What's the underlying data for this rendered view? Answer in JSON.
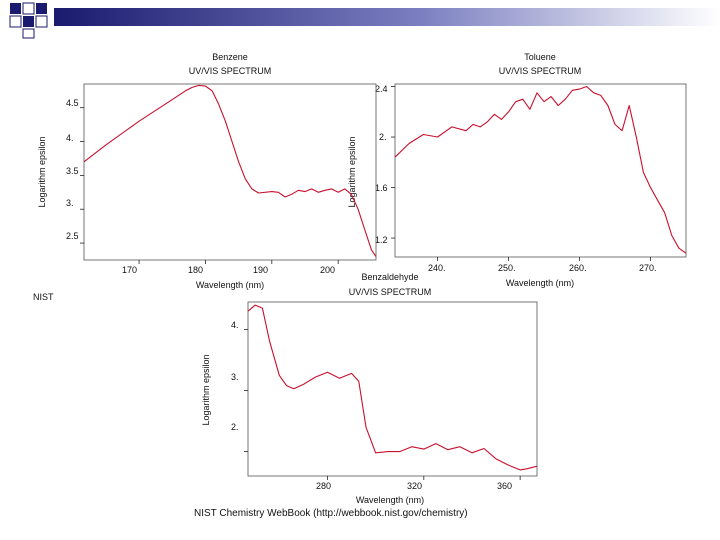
{
  "charts": [
    {
      "title": "Benzene",
      "subtitle": "UV/VIS SPECTRUM",
      "xlabel": "Wavelength (nm)",
      "ylabel": "Logarithm epsilon",
      "ytick_labels": [
        "4.5",
        "4.",
        "3.5",
        "3.",
        "2.5"
      ],
      "xtick_labels": [
        "170",
        "180",
        "190",
        "200"
      ],
      "corner_label": "NIST"
    },
    {
      "title": "Toluene",
      "subtitle": "UV/VIS SPECTRUM",
      "xlabel": "Wavelength (nm)",
      "ylabel": "Logarithm epsilon",
      "ytick_labels": [
        "2.4",
        "2.",
        "1.6",
        "1.2"
      ],
      "xtick_labels": [
        "240.",
        "250.",
        "260.",
        "270."
      ]
    },
    {
      "title": "Benzaldehyde",
      "subtitle": "UV/VIS SPECTRUM",
      "xlabel": "Wavelength (nm)",
      "ylabel": "Logarithm epsilon",
      "ytick_labels": [
        "4.",
        "3.",
        "2."
      ],
      "xtick_labels": [
        "280",
        "320",
        "360"
      ]
    }
  ],
  "footer": "NIST Chemistry WebBook (http://webbook.nist.gov/chemistry)",
  "colors": {
    "line": "#c8102e",
    "axis": "#222222",
    "frame": "#555555",
    "deco_dark": "#1a1a6e",
    "deco_light": "#ffffff"
  },
  "chart_data": [
    {
      "type": "line",
      "title": "Benzene",
      "xlabel": "Wavelength (nm)",
      "ylabel": "Logarithm epsilon",
      "xlim": [
        161.7,
        205.7
      ],
      "ylim": [
        2.25,
        4.85
      ],
      "x": [
        161.7,
        165,
        170,
        175,
        177,
        178,
        179,
        180,
        181,
        182,
        183,
        184,
        185,
        186,
        187,
        188,
        190,
        191,
        192,
        193,
        194,
        195,
        196,
        197,
        198,
        199,
        200,
        201,
        202,
        203,
        204,
        205,
        205.7
      ],
      "y": [
        3.7,
        3.95,
        4.3,
        4.62,
        4.75,
        4.8,
        4.83,
        4.82,
        4.75,
        4.55,
        4.3,
        4.0,
        3.7,
        3.45,
        3.3,
        3.24,
        3.26,
        3.25,
        3.18,
        3.22,
        3.28,
        3.26,
        3.3,
        3.25,
        3.28,
        3.3,
        3.25,
        3.3,
        3.22,
        3.0,
        2.7,
        2.4,
        2.3
      ]
    },
    {
      "type": "line",
      "title": "Toluene",
      "xlabel": "Wavelength (nm)",
      "ylabel": "Logarithm epsilon",
      "xlim": [
        234,
        275
      ],
      "ylim": [
        1.05,
        2.42
      ],
      "x": [
        234,
        236,
        238,
        240,
        242,
        244,
        245,
        246,
        247,
        248,
        249,
        250,
        251,
        252,
        253,
        254,
        255,
        256,
        257,
        258,
        259,
        260,
        261,
        262,
        263,
        264,
        265,
        266,
        267,
        268,
        269,
        270,
        271,
        272,
        273,
        274,
        275
      ],
      "y": [
        1.84,
        1.95,
        2.02,
        2.0,
        2.08,
        2.05,
        2.1,
        2.08,
        2.12,
        2.18,
        2.14,
        2.2,
        2.28,
        2.3,
        2.22,
        2.35,
        2.28,
        2.32,
        2.25,
        2.3,
        2.37,
        2.38,
        2.4,
        2.35,
        2.33,
        2.25,
        2.1,
        2.05,
        2.25,
        2.0,
        1.72,
        1.6,
        1.5,
        1.4,
        1.22,
        1.12,
        1.08
      ]
    },
    {
      "type": "line",
      "title": "Benzaldehyde",
      "xlabel": "Wavelength (nm)",
      "ylabel": "Logarithm epsilon",
      "xlim": [
        247,
        367
      ],
      "ylim": [
        1.6,
        4.45
      ],
      "x": [
        247,
        250,
        253,
        256,
        260,
        263,
        266,
        270,
        275,
        280,
        285,
        290,
        293,
        296,
        300,
        305,
        310,
        315,
        320,
        325,
        330,
        335,
        340,
        345,
        350,
        355,
        360,
        363,
        367
      ],
      "y": [
        4.3,
        4.4,
        4.35,
        3.8,
        3.25,
        3.08,
        3.03,
        3.1,
        3.22,
        3.3,
        3.2,
        3.28,
        3.15,
        2.4,
        1.98,
        2.0,
        2.0,
        2.08,
        2.04,
        2.13,
        2.03,
        2.08,
        1.98,
        2.05,
        1.88,
        1.78,
        1.7,
        1.72,
        1.76
      ]
    }
  ]
}
